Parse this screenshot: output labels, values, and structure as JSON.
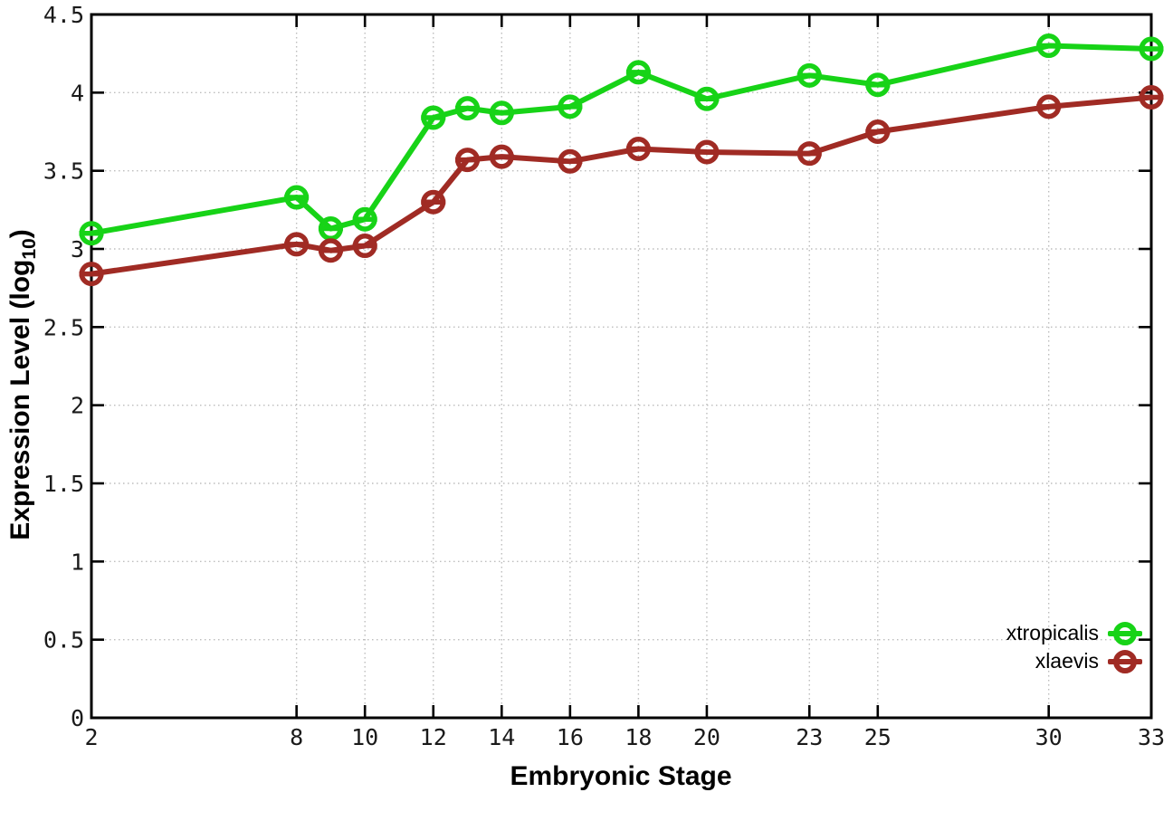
{
  "chart_data": {
    "type": "line",
    "title": "",
    "xlabel": "Embryonic Stage",
    "ylabel": "Expression Level (log10)",
    "ylabel_parts": {
      "main": "Expression Level (log",
      "sub": "10",
      "end": ")"
    },
    "xlim": [
      2,
      33
    ],
    "ylim": [
      0,
      4.5
    ],
    "grid": true,
    "legend_position": "inside-bottom-right",
    "marker": "open-circle-with-horizontal-bar",
    "x": [
      2,
      8,
      9,
      10,
      12,
      13,
      14,
      16,
      18,
      20,
      23,
      25,
      30,
      33
    ],
    "x_tick_values": [
      2,
      8,
      10,
      12,
      14,
      16,
      18,
      20,
      23,
      25,
      30,
      33
    ],
    "x_tick_labels": [
      "2",
      "8",
      "10",
      "12",
      "14",
      "16",
      "18",
      "20",
      "23",
      "25",
      "30",
      "33"
    ],
    "y_tick_values": [
      0,
      0.5,
      1,
      1.5,
      2,
      2.5,
      3,
      3.5,
      4,
      4.5
    ],
    "y_tick_labels": [
      "0",
      "0.5",
      "1",
      "1.5",
      "2",
      "2.5",
      "3",
      "3.5",
      "4",
      "4.5"
    ],
    "series": [
      {
        "name": "xtropicalis",
        "color": "#17d317",
        "values": [
          3.1,
          3.33,
          3.13,
          3.19,
          3.84,
          3.9,
          3.87,
          3.91,
          4.13,
          3.96,
          4.11,
          4.05,
          4.3,
          4.28
        ]
      },
      {
        "name": "xlaevis",
        "color": "#a02b24",
        "values": [
          2.84,
          3.03,
          2.99,
          3.02,
          3.3,
          3.57,
          3.59,
          3.56,
          3.64,
          3.62,
          3.61,
          3.75,
          3.91,
          3.97
        ]
      }
    ]
  }
}
